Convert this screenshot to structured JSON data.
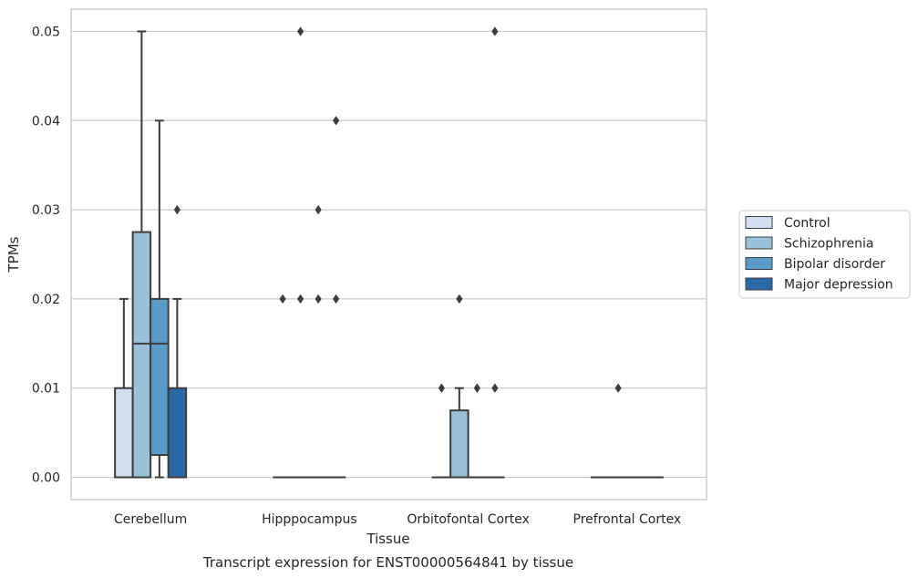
{
  "chart_data": {
    "type": "box",
    "title": "",
    "caption": "Transcript expression for ENST00000564841 by tissue",
    "xlabel": "Tissue",
    "ylabel": "TPMs",
    "ylim": [
      -0.0025,
      0.0525
    ],
    "yticks": [
      "0.00",
      "0.01",
      "0.02",
      "0.03",
      "0.04",
      "0.05"
    ],
    "grid": "horizontal",
    "legend_position": "right-center",
    "categories": [
      "Cerebellum",
      "Hipppocampus",
      "Orbitofontal Cortex",
      "Prefrontal Cortex"
    ],
    "series": [
      {
        "name": "Control",
        "color": "#d0dff0",
        "boxes": [
          {
            "q1": 0,
            "median": 0,
            "q3": 0.01,
            "whisker_low": 0,
            "whisker_high": 0.02,
            "outliers": []
          },
          {
            "q1": 0,
            "median": 0,
            "q3": 0,
            "whisker_low": 0,
            "whisker_high": 0,
            "outliers": [
              0.02
            ]
          },
          {
            "q1": 0,
            "median": 0,
            "q3": 0,
            "whisker_low": 0,
            "whisker_high": 0,
            "outliers": [
              0.01
            ]
          },
          {
            "q1": 0,
            "median": 0,
            "q3": 0,
            "whisker_low": 0,
            "whisker_high": 0,
            "outliers": []
          }
        ]
      },
      {
        "name": "Schizophrenia",
        "color": "#9ac1da",
        "boxes": [
          {
            "q1": 0,
            "median": 0.015,
            "q3": 0.0275,
            "whisker_low": 0,
            "whisker_high": 0.05,
            "outliers": []
          },
          {
            "q1": 0,
            "median": 0,
            "q3": 0,
            "whisker_low": 0,
            "whisker_high": 0,
            "outliers": [
              0.02,
              0.05
            ]
          },
          {
            "q1": 0,
            "median": 0,
            "q3": 0.0075,
            "whisker_low": 0,
            "whisker_high": 0.01,
            "outliers": [
              0.02
            ]
          },
          {
            "q1": 0,
            "median": 0,
            "q3": 0,
            "whisker_low": 0,
            "whisker_high": 0,
            "outliers": [
              0.01
            ]
          }
        ]
      },
      {
        "name": "Bipolar disorder",
        "color": "#5b9bc8",
        "boxes": [
          {
            "q1": 0.0025,
            "median": 0.015,
            "q3": 0.02,
            "whisker_low": 0,
            "whisker_high": 0.04,
            "outliers": []
          },
          {
            "q1": 0,
            "median": 0,
            "q3": 0,
            "whisker_low": 0,
            "whisker_high": 0,
            "outliers": [
              0.02,
              0.03
            ]
          },
          {
            "q1": 0,
            "median": 0,
            "q3": 0,
            "whisker_low": 0,
            "whisker_high": 0,
            "outliers": [
              0.01
            ]
          },
          {
            "q1": 0,
            "median": 0,
            "q3": 0,
            "whisker_low": 0,
            "whisker_high": 0,
            "outliers": []
          }
        ]
      },
      {
        "name": "Major depression",
        "color": "#2a69a6",
        "boxes": [
          {
            "q1": 0,
            "median": 0,
            "q3": 0.01,
            "whisker_low": 0,
            "whisker_high": 0.02,
            "outliers": [
              0.03
            ]
          },
          {
            "q1": 0,
            "median": 0,
            "q3": 0,
            "whisker_low": 0,
            "whisker_high": 0,
            "outliers": [
              0.02,
              0.04
            ]
          },
          {
            "q1": 0,
            "median": 0,
            "q3": 0,
            "whisker_low": 0,
            "whisker_high": 0,
            "outliers": [
              0.01,
              0.05
            ]
          },
          {
            "q1": 0,
            "median": 0,
            "q3": 0,
            "whisker_low": 0,
            "whisker_high": 0,
            "outliers": []
          }
        ]
      }
    ]
  }
}
